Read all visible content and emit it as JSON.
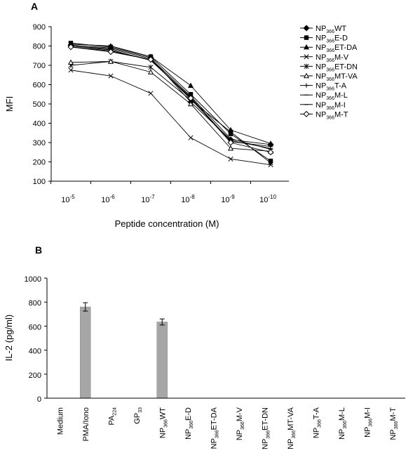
{
  "chart_data": [
    {
      "panel": "A",
      "type": "line",
      "x": [
        "10-5",
        "10-6",
        "10-7",
        "10-8",
        "10-9",
        "10-10"
      ],
      "x_tick_labels": [
        {
          "base": "10",
          "exp": "-5"
        },
        {
          "base": "10",
          "exp": "-6"
        },
        {
          "base": "10",
          "exp": "-7"
        },
        {
          "base": "10",
          "exp": "-8"
        },
        {
          "base": "10",
          "exp": "-9"
        },
        {
          "base": "10",
          "exp": "-10"
        }
      ],
      "xlabel": "Peptide concentration (M)",
      "ylabel": "MFI",
      "ylim": [
        100,
        900
      ],
      "yticks": [
        100,
        200,
        300,
        400,
        500,
        600,
        700,
        800,
        900
      ],
      "legend_position": "right",
      "series": [
        {
          "name": "NP366WT",
          "label": {
            "pre": "NP",
            "sub": "366",
            "post": "WT"
          },
          "marker": "diamond-filled",
          "values": [
            805,
            790,
            740,
            510,
            315,
            290
          ]
        },
        {
          "name": "NP366E-D",
          "label": {
            "pre": "NP",
            "sub": "366",
            "post": "E-D"
          },
          "marker": "square-filled",
          "values": [
            815,
            795,
            745,
            550,
            345,
            205
          ]
        },
        {
          "name": "NP366ET-DA",
          "label": {
            "pre": "NP",
            "sub": "366",
            "post": "ET-DA"
          },
          "marker": "triangle-filled",
          "values": [
            810,
            800,
            745,
            595,
            365,
            295
          ]
        },
        {
          "name": "NP366M-V",
          "label": {
            "pre": "NP",
            "sub": "366",
            "post": "M-V"
          },
          "marker": "x",
          "values": [
            675,
            645,
            555,
            325,
            215,
            185
          ]
        },
        {
          "name": "NP366ET-DN",
          "label": {
            "pre": "NP",
            "sub": "366",
            "post": "ET-DN"
          },
          "marker": "star",
          "values": [
            700,
            720,
            690,
            520,
            355,
            195
          ]
        },
        {
          "name": "NP366MT-VA",
          "label": {
            "pre": "NP",
            "sub": "366",
            "post": "MT-VA"
          },
          "marker": "triangle-open",
          "values": [
            715,
            720,
            665,
            500,
            270,
            255
          ]
        },
        {
          "name": "NP366T-A",
          "label": {
            "pre": "NP",
            "sub": "366",
            "post": "T-A"
          },
          "marker": "plus",
          "values": [
            800,
            780,
            725,
            535,
            305,
            280
          ]
        },
        {
          "name": "NP366M-L",
          "label": {
            "pre": "NP",
            "sub": "366",
            "post": "M-L"
          },
          "marker": "dash",
          "values": [
            795,
            775,
            730,
            525,
            310,
            270
          ]
        },
        {
          "name": "NP366M-I",
          "label": {
            "pre": "NP",
            "sub": "366",
            "post": "M-I"
          },
          "marker": "dash",
          "values": [
            800,
            785,
            735,
            540,
            320,
            265
          ]
        },
        {
          "name": "NP366M-T",
          "label": {
            "pre": "NP",
            "sub": "366",
            "post": "M-T"
          },
          "marker": "diamond-open",
          "values": [
            795,
            770,
            730,
            530,
            300,
            250
          ]
        }
      ]
    },
    {
      "panel": "B",
      "type": "bar",
      "categories": [
        "Medium",
        "PMA/Iono",
        "PA224",
        "GP33",
        "NP366WT",
        "NP366E-D",
        "NP366ET-DA",
        "NP366M-V",
        "NP366ET-DN",
        "NP366MT-VA",
        "NP366T-A",
        "NP366M-L",
        "NP366M-I",
        "NP366M-T"
      ],
      "category_labels": [
        {
          "pre": "Medium",
          "sub": "",
          "post": ""
        },
        {
          "pre": "PMA/Iono",
          "sub": "",
          "post": ""
        },
        {
          "pre": "PA",
          "sub": "224",
          "post": ""
        },
        {
          "pre": "GP",
          "sub": "33",
          "post": ""
        },
        {
          "pre": "NP",
          "sub": "366",
          "post": "WT"
        },
        {
          "pre": "NP",
          "sub": "366",
          "post": "E-D"
        },
        {
          "pre": "NP",
          "sub": "366",
          "post": "ET-DA"
        },
        {
          "pre": "NP",
          "sub": "366",
          "post": "M-V"
        },
        {
          "pre": "NP",
          "sub": "366",
          "post": "ET-DN"
        },
        {
          "pre": "NP",
          "sub": "366",
          "post": "MT-VA"
        },
        {
          "pre": "NP",
          "sub": "366",
          "post": "T-A"
        },
        {
          "pre": "NP",
          "sub": "366",
          "post": "M-L"
        },
        {
          "pre": "NP",
          "sub": "366",
          "post": "M-I"
        },
        {
          "pre": "NP",
          "sub": "366",
          "post": "M-T"
        }
      ],
      "values": [
        0,
        760,
        0,
        0,
        635,
        0,
        0,
        0,
        0,
        0,
        0,
        0,
        0,
        0
      ],
      "errors": [
        0,
        35,
        0,
        0,
        25,
        0,
        0,
        0,
        0,
        0,
        0,
        0,
        0,
        0
      ],
      "xlabel": "",
      "ylabel": "IL-2 (pg/ml)",
      "ylim": [
        0,
        1000
      ],
      "yticks": [
        0,
        200,
        400,
        600,
        800,
        1000
      ],
      "bar_color": "#a6a6a6"
    }
  ]
}
